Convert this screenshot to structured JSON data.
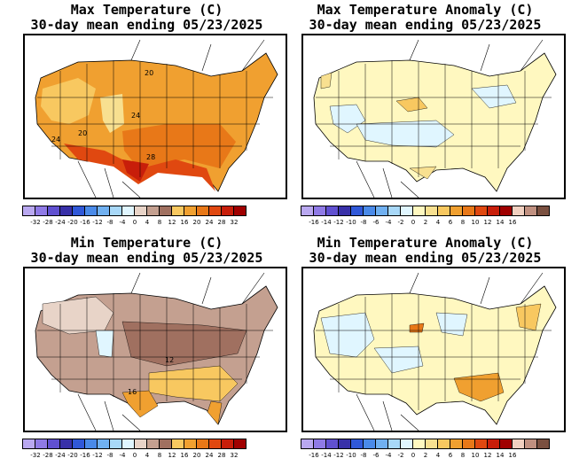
{
  "panels": {
    "max_temp": {
      "title_line1": "Max Temperature (C)",
      "title_line2": "30-day mean ending 05/23/2025",
      "contour_labels": [
        "20",
        "24",
        "20",
        "24",
        "28"
      ],
      "legend_ticks": [
        "-32",
        "-28",
        "-24",
        "-20",
        "-16",
        "-12",
        "-8",
        "-4",
        "0",
        "4",
        "8",
        "12",
        "16",
        "20",
        "24",
        "28",
        "32"
      ]
    },
    "max_anom": {
      "title_line1": "Max Temperature Anomaly (C)",
      "title_line2": "30-day mean ending 05/23/2025",
      "legend_ticks": [
        "-16",
        "-14",
        "-12",
        "-10",
        "-8",
        "-6",
        "-4",
        "-2",
        "0",
        "2",
        "4",
        "6",
        "8",
        "10",
        "12",
        "14",
        "16"
      ]
    },
    "min_temp": {
      "title_line1": "Min Temperature (C)",
      "title_line2": "30-day mean ending 05/23/2025",
      "contour_labels": [
        "12",
        "16"
      ],
      "legend_ticks": [
        "-32",
        "-28",
        "-24",
        "-20",
        "-16",
        "-12",
        "-8",
        "-4",
        "0",
        "4",
        "8",
        "12",
        "16",
        "20",
        "24",
        "28",
        "32"
      ]
    },
    "min_anom": {
      "title_line1": "Min Temperature Anomaly (C)",
      "title_line2": "30-day mean ending 05/23/2025",
      "legend_ticks": [
        "-16",
        "-14",
        "-12",
        "-10",
        "-8",
        "-6",
        "-4",
        "-2",
        "0",
        "2",
        "4",
        "6",
        "8",
        "10",
        "12",
        "14",
        "16"
      ]
    }
  },
  "colors": {
    "scale": [
      "#b9a8f0",
      "#8f7ae6",
      "#6050d0",
      "#3830a8",
      "#3058d8",
      "#4a8ae8",
      "#70b0f0",
      "#a8d8f8",
      "#e0f6ff",
      "#fff8c0",
      "#f8e090",
      "#f8c860",
      "#f0a030",
      "#e87818",
      "#e04810",
      "#c81e0a",
      "#a00000",
      "#f0d0c0",
      "#c09080",
      "#7a5040"
    ],
    "temp_scale": [
      "#b9a8f0",
      "#8f7ae6",
      "#6050d0",
      "#3830a8",
      "#3058d8",
      "#4a8ae8",
      "#70b0f0",
      "#a8d8f8",
      "#e0f6ff",
      "#e8d4c8",
      "#c4a090",
      "#a07060",
      "#f8c860",
      "#f0a030",
      "#e87818",
      "#e04810",
      "#c81e0a",
      "#a00000"
    ],
    "anom_scale": [
      "#b9a8f0",
      "#8f7ae6",
      "#6050d0",
      "#3830a8",
      "#3058d8",
      "#4a8ae8",
      "#70b0f0",
      "#a8d8f8",
      "#e0f6ff",
      "#fff8c0",
      "#f8e090",
      "#f8c860",
      "#f0a030",
      "#e87818",
      "#e04810",
      "#c81e0a",
      "#a00000",
      "#f0d0c0",
      "#c09080",
      "#7a5040"
    ]
  }
}
